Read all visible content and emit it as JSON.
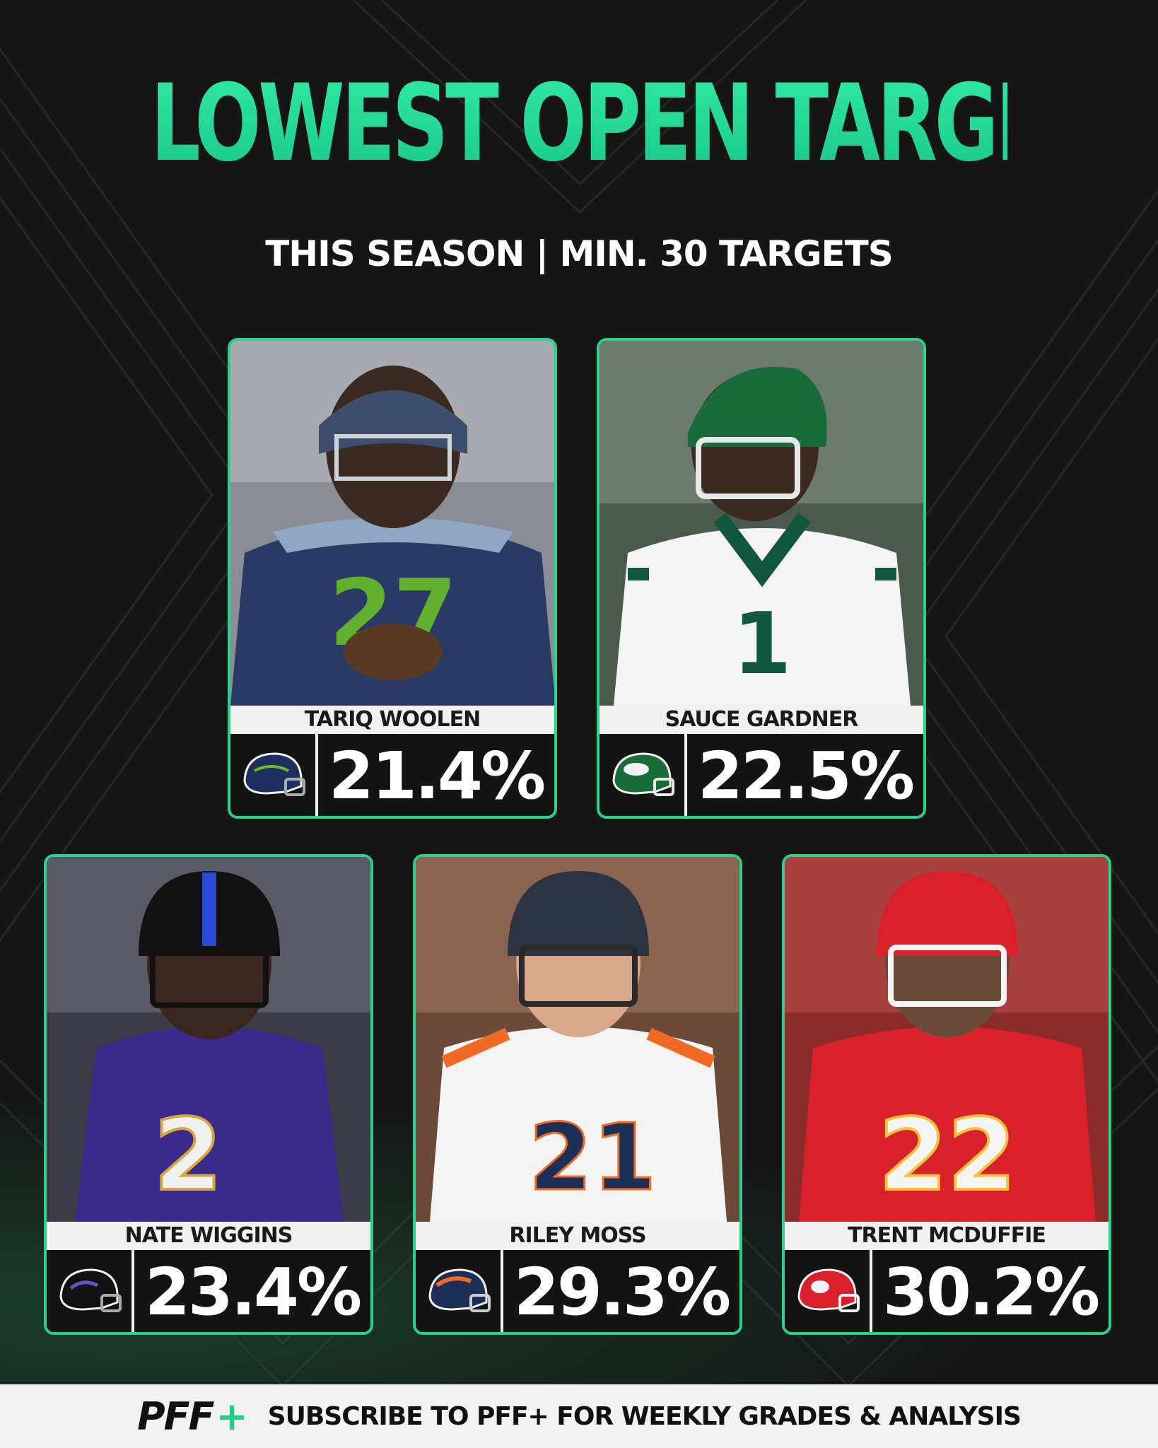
{
  "title": "LOWEST OPEN TARGET %",
  "subtitle": "THIS SEASON | MIN. 30 TARGETS",
  "players": [
    {
      "name": "TARIQ WOOLEN",
      "value": "21.4%",
      "team": "seahawks",
      "helmet_color": "#1f3060",
      "jersey_color": "#2a3a66",
      "accent": "#69be28",
      "jersey_number": "27"
    },
    {
      "name": "SAUCE GARDNER",
      "value": "22.5%",
      "team": "jets",
      "helmet_color": "#1a6b3a",
      "jersey_color": "#f4f4f4",
      "accent": "#125740",
      "jersey_number": "1"
    },
    {
      "name": "NATE WIGGINS",
      "value": "23.4%",
      "team": "ravens",
      "helmet_color": "#111111",
      "jersey_color": "#3a2a8c",
      "accent": "#d6a73a",
      "jersey_number": "2"
    },
    {
      "name": "RILEY MOSS",
      "value": "29.3%",
      "team": "broncos",
      "helmet_color": "#1c2f57",
      "jersey_color": "#f4f4f4",
      "accent": "#f06a23",
      "jersey_number": "21"
    },
    {
      "name": "TRENT MCDUFFIE",
      "value": "30.2%",
      "team": "chiefs",
      "helmet_color": "#d81f2a",
      "jersey_color": "#d8212b",
      "accent": "#f4c33b",
      "jersey_number": "22"
    }
  ],
  "footer": {
    "logo": "PFF",
    "logo_plus": "+",
    "text": "SUBSCRIBE TO PFF+ FOR WEEKLY GRADES & ANALYSIS"
  },
  "colors": {
    "accent": "#2ad08e",
    "background": "#161616"
  }
}
